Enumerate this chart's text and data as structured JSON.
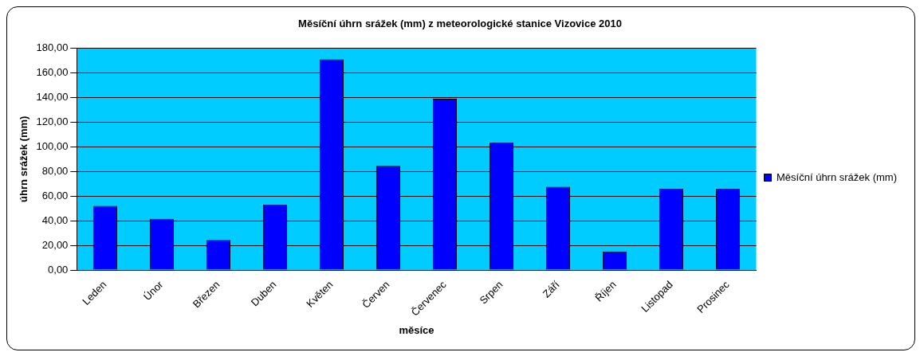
{
  "chart_data": {
    "type": "bar",
    "title": "Měsíční úhrn srážek (mm) z meteorologické stanice Vizovice 2010",
    "xlabel": "měsíce",
    "ylabel": "úhrn srážek (mm)",
    "categories": [
      "Leden",
      "Únor",
      "Březen",
      "Duben",
      "Květen",
      "Červen",
      "Červenec",
      "Srpen",
      "Září",
      "Říjen",
      "Listopad",
      "Prosinec"
    ],
    "series": [
      {
        "name": "Měsíční úhrn srážek (mm)",
        "color": "#0000ff",
        "values": [
          52,
          41.5,
          24.5,
          53,
          171,
          84.5,
          139,
          103.5,
          67.5,
          15,
          66,
          66
        ]
      }
    ],
    "ylim": [
      0,
      180
    ],
    "yticks": [
      {
        "value": 0,
        "label": "0,00"
      },
      {
        "value": 20,
        "label": "20,00"
      },
      {
        "value": 40,
        "label": "40,00"
      },
      {
        "value": 60,
        "label": "60,00"
      },
      {
        "value": 80,
        "label": "80,00"
      },
      {
        "value": 100,
        "label": "100,00"
      },
      {
        "value": 120,
        "label": "120,00"
      },
      {
        "value": 140,
        "label": "140,00"
      },
      {
        "value": 160,
        "label": "160,00"
      },
      {
        "value": 180,
        "label": "180,00"
      }
    ],
    "grid": "y",
    "legend": "right"
  }
}
